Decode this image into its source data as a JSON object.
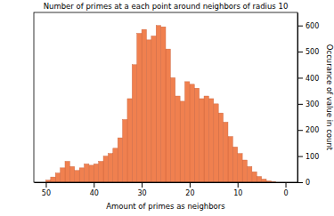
{
  "chart_data": {
    "type": "histogram",
    "title": "Number of primes at a each point around neighbors of radius 10",
    "x_label": "Amount of primes as neighbors",
    "y_label": "Occurance of value in count",
    "bins": [
      2,
      3,
      4,
      5,
      6,
      7,
      8,
      9,
      10,
      11,
      12,
      13,
      14,
      15,
      16,
      17,
      18,
      19,
      20,
      21,
      22,
      23,
      24,
      25,
      26,
      27,
      28,
      29,
      30,
      31,
      32,
      33,
      34,
      35,
      36,
      37,
      38,
      39,
      40,
      41,
      42,
      43,
      44,
      45,
      46,
      47,
      48,
      49,
      50
    ],
    "values": [
      2,
      5,
      12,
      22,
      40,
      60,
      85,
      110,
      135,
      175,
      230,
      265,
      300,
      320,
      330,
      320,
      360,
      375,
      385,
      310,
      330,
      400,
      510,
      595,
      600,
      560,
      545,
      585,
      570,
      450,
      320,
      240,
      170,
      130,
      110,
      100,
      80,
      70,
      65,
      70,
      55,
      45,
      60,
      80,
      55,
      35,
      20,
      8
    ],
    "color": "#f0804f",
    "xlim": [
      52.5,
      -2.5
    ],
    "xticks": [
      50,
      40,
      30,
      20,
      10,
      0
    ],
    "ylim": [
      0,
      650
    ],
    "yticks": [
      0,
      100,
      200,
      300,
      400,
      500,
      600
    ],
    "grid": false
  }
}
